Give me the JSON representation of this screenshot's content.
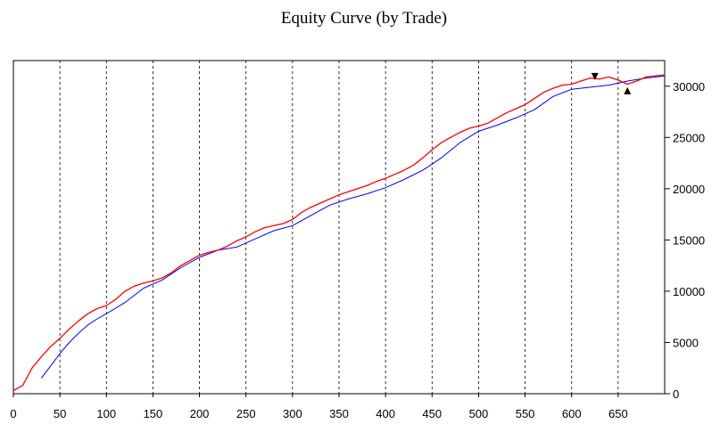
{
  "chart_data": {
    "type": "line",
    "title": "Equity Curve (by Trade)",
    "xlabel": "",
    "ylabel": "",
    "xlim": [
      0,
      700
    ],
    "ylim": [
      0,
      32500
    ],
    "x_ticks": [
      0,
      50,
      100,
      150,
      200,
      250,
      300,
      350,
      400,
      450,
      500,
      550,
      600,
      650
    ],
    "y_ticks": [
      0,
      5000,
      10000,
      15000,
      20000,
      25000,
      30000
    ],
    "grid": "vertical dashed",
    "legend": "none",
    "series": [
      {
        "color": "#ff0000",
        "x": [
          0,
          10,
          20,
          30,
          40,
          50,
          60,
          70,
          80,
          90,
          100,
          110,
          120,
          130,
          140,
          150,
          160,
          170,
          180,
          190,
          200,
          210,
          220,
          230,
          240,
          250,
          260,
          270,
          280,
          290,
          300,
          310,
          320,
          330,
          340,
          350,
          360,
          370,
          380,
          390,
          400,
          410,
          420,
          430,
          440,
          450,
          460,
          470,
          480,
          490,
          500,
          510,
          520,
          530,
          540,
          550,
          560,
          570,
          580,
          590,
          600,
          610,
          620,
          630,
          640,
          650,
          660,
          670,
          680,
          690,
          700
        ],
        "values": [
          300,
          800,
          2500,
          3600,
          4600,
          5400,
          6300,
          7100,
          7800,
          8300,
          8600,
          9200,
          10000,
          10500,
          10800,
          11000,
          11300,
          11800,
          12500,
          13000,
          13500,
          13800,
          14000,
          14400,
          14900,
          15300,
          15800,
          16200,
          16400,
          16600,
          17000,
          17700,
          18200,
          18600,
          19000,
          19400,
          19700,
          20000,
          20300,
          20700,
          21000,
          21400,
          21800,
          22300,
          23000,
          23800,
          24500,
          25000,
          25500,
          25900,
          26100,
          26400,
          26900,
          27400,
          27800,
          28200,
          28800,
          29400,
          29800,
          30100,
          30200,
          30500,
          30800,
          30700,
          30900,
          30600,
          30200,
          30500,
          30900,
          31000,
          31100
        ]
      },
      {
        "color": "#0000ff",
        "x": [
          30,
          40,
          50,
          60,
          70,
          80,
          90,
          100,
          120,
          140,
          160,
          180,
          200,
          220,
          240,
          260,
          280,
          300,
          320,
          340,
          360,
          380,
          400,
          420,
          440,
          460,
          480,
          500,
          520,
          540,
          560,
          580,
          600,
          620,
          640,
          660,
          680,
          700
        ],
        "values": [
          1500,
          2700,
          3900,
          5000,
          5900,
          6700,
          7300,
          7800,
          8900,
          10300,
          11100,
          12300,
          13300,
          14000,
          14300,
          15100,
          15900,
          16400,
          17400,
          18400,
          19000,
          19500,
          20100,
          20900,
          21800,
          23000,
          24500,
          25600,
          26200,
          26900,
          27700,
          29000,
          29700,
          29900,
          30100,
          30500,
          30800,
          31000
        ]
      }
    ],
    "annotations": [
      {
        "type": "down-triangle",
        "x": 625,
        "y": 30600
      },
      {
        "type": "up-triangle",
        "x": 660,
        "y": 29900
      }
    ]
  }
}
